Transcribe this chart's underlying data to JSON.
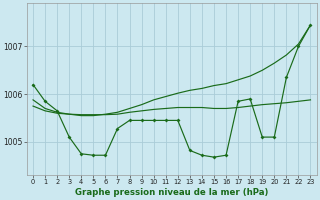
{
  "background_color": "#cce8f0",
  "grid_color": "#aaccd8",
  "line_color": "#1a6b1a",
  "xlabel": "Graphe pression niveau de la mer (hPa)",
  "xlim": [
    -0.5,
    23.5
  ],
  "ylim": [
    1004.3,
    1007.9
  ],
  "yticks": [
    1005,
    1006,
    1007
  ],
  "xticks": [
    0,
    1,
    2,
    3,
    4,
    5,
    6,
    7,
    8,
    9,
    10,
    11,
    12,
    13,
    14,
    15,
    16,
    17,
    18,
    19,
    20,
    21,
    22,
    23
  ],
  "series_zigzag": [
    1006.2,
    1005.85,
    1005.65,
    1005.1,
    1004.75,
    1004.72,
    1004.72,
    1005.28,
    1005.45,
    1005.45,
    1005.45,
    1005.45,
    1005.45,
    1004.82,
    1004.72,
    1004.68,
    1004.72,
    1005.85,
    1005.9,
    1005.1,
    1005.1,
    1006.35,
    1007.0,
    1007.45
  ],
  "series_diagonal": [
    1005.88,
    1005.7,
    1005.62,
    1005.58,
    1005.55,
    1005.55,
    1005.58,
    1005.62,
    1005.7,
    1005.78,
    1005.88,
    1005.95,
    1006.02,
    1006.08,
    1006.12,
    1006.18,
    1006.22,
    1006.3,
    1006.38,
    1006.5,
    1006.65,
    1006.82,
    1007.05,
    1007.45
  ],
  "series_flat": [
    1005.75,
    1005.65,
    1005.6,
    1005.58,
    1005.57,
    1005.57,
    1005.57,
    1005.58,
    1005.62,
    1005.65,
    1005.68,
    1005.7,
    1005.72,
    1005.72,
    1005.72,
    1005.7,
    1005.7,
    1005.72,
    1005.75,
    1005.78,
    1005.8,
    1005.82,
    1005.85,
    1005.88
  ]
}
